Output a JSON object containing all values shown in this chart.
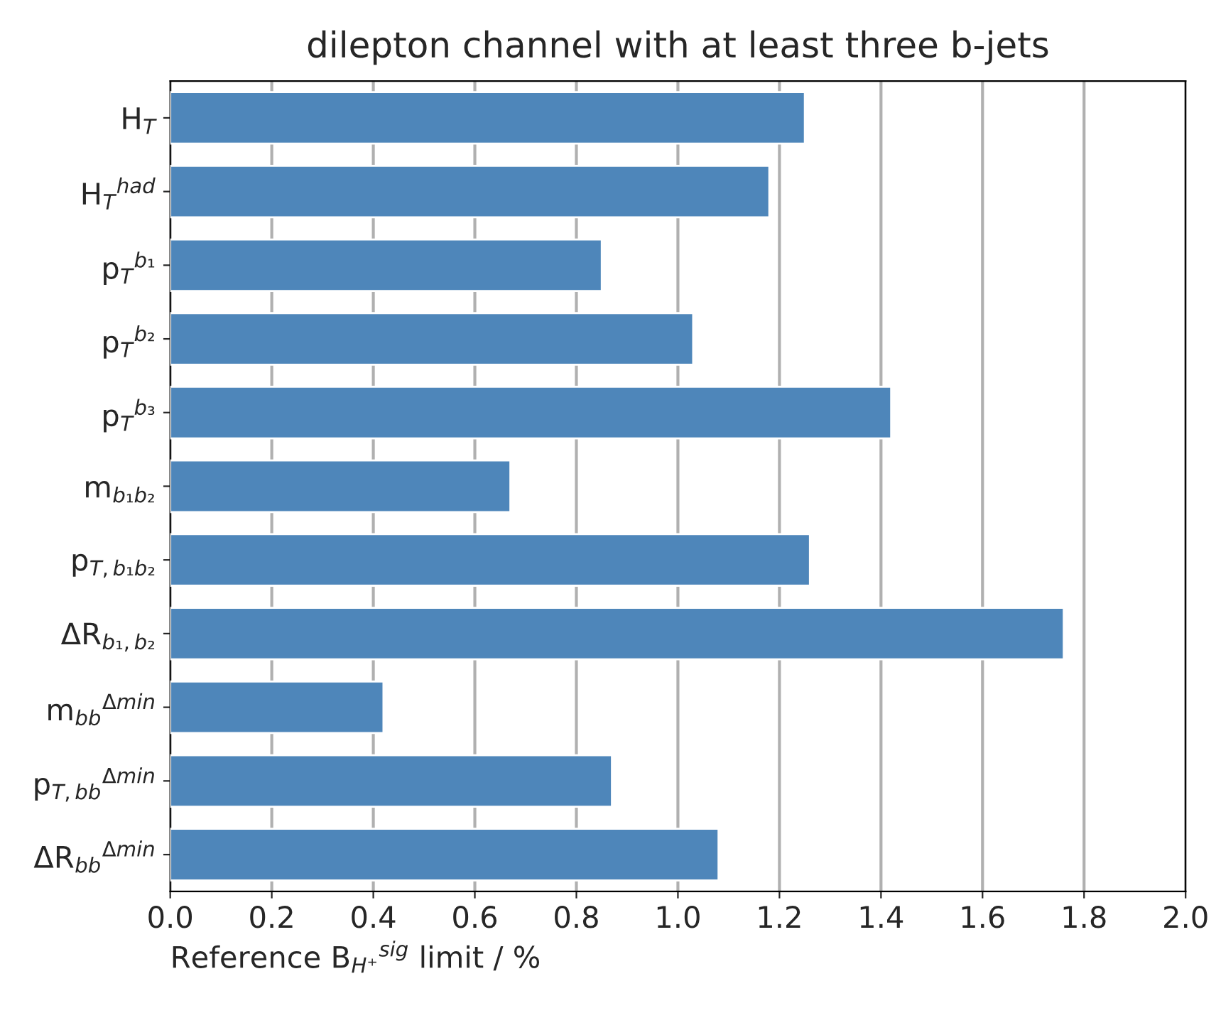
{
  "chart_data": {
    "type": "bar",
    "orientation": "horizontal",
    "title": "dilepton channel with at least three b-jets",
    "xlabel": "Reference B$_{H⁺}$$^{sig}$ limit / %",
    "categories": [
      "H$_{T}$",
      "H$_{T}$$^{had}$",
      "p$_{T}$$^{b₁}$",
      "p$_{T}$$^{b₂}$",
      "p$_{T}$$^{b₃}$",
      "m$_{b₁b₂}$",
      "p$_{T,b₁b₂}$",
      "ΔR$_{b₁,b₂}$",
      "m$_{bb}$$^{Δmin}$",
      "p$_{T,bb}$$^{Δmin}$",
      "ΔR$_{bb}$$^{Δmin}$"
    ],
    "values": [
      1.25,
      1.18,
      0.85,
      1.03,
      1.42,
      0.67,
      1.26,
      1.76,
      0.42,
      0.87,
      1.08
    ],
    "color": "#4e86ba",
    "xlim": [
      0,
      2.0
    ],
    "xticks": [
      {
        "value": 0,
        "label": "0.0"
      },
      0.2,
      0.4,
      0.6,
      0.8,
      {
        "value": 1,
        "label": "1.0"
      },
      1.2,
      1.4,
      1.6,
      1.8,
      {
        "value": 2,
        "label": "2.0"
      }
    ],
    "grid": "x"
  }
}
